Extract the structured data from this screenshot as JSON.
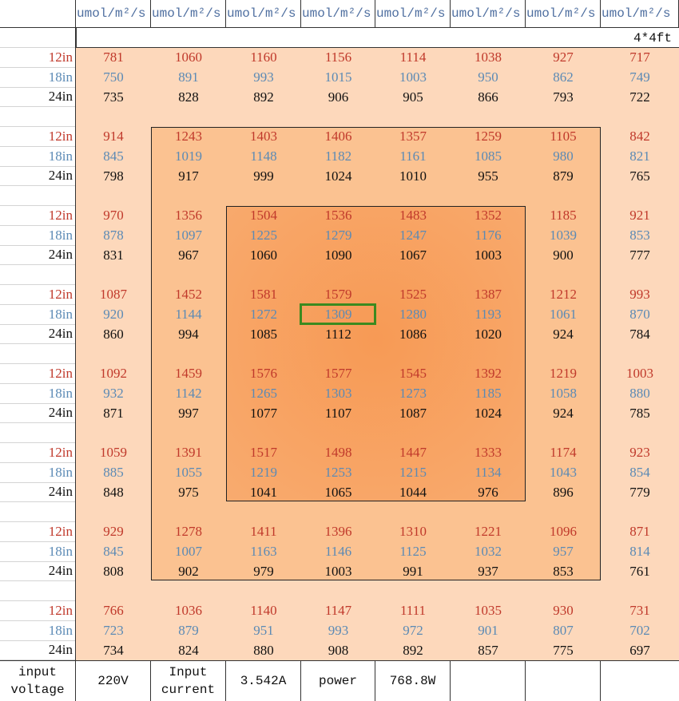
{
  "header": {
    "units": [
      "umol/m²/s",
      "umol/m²/s",
      "umol/m²/s",
      "umol/m²/s",
      "umol/m²/s",
      "umol/m²/s",
      "umol/m²/s",
      "umol/m²/s"
    ],
    "size": "4*4ft"
  },
  "table": {
    "blocks": [
      {
        "rows": [
          {
            "height": "12in",
            "values": [
              781,
              1060,
              1160,
              1156,
              1114,
              1038,
              927,
              717
            ]
          },
          {
            "height": "18in",
            "values": [
              750,
              891,
              993,
              1015,
              1003,
              950,
              862,
              749
            ]
          },
          {
            "height": "24in",
            "values": [
              735,
              828,
              892,
              906,
              905,
              866,
              793,
              722
            ]
          }
        ]
      },
      {
        "rows": [
          {
            "height": "12in",
            "values": [
              914,
              1243,
              1403,
              1406,
              1357,
              1259,
              1105,
              842
            ]
          },
          {
            "height": "18in",
            "values": [
              845,
              1019,
              1148,
              1182,
              1161,
              1085,
              980,
              821
            ]
          },
          {
            "height": "24in",
            "values": [
              798,
              917,
              999,
              1024,
              1010,
              955,
              879,
              765
            ]
          }
        ]
      },
      {
        "rows": [
          {
            "height": "12in",
            "values": [
              970,
              1356,
              1504,
              1536,
              1483,
              1352,
              1185,
              921
            ]
          },
          {
            "height": "18in",
            "values": [
              878,
              1097,
              1225,
              1279,
              1247,
              1176,
              1039,
              853
            ]
          },
          {
            "height": "24in",
            "values": [
              831,
              967,
              1060,
              1090,
              1067,
              1003,
              900,
              777
            ]
          }
        ]
      },
      {
        "rows": [
          {
            "height": "12in",
            "values": [
              1087,
              1452,
              1581,
              1579,
              1525,
              1387,
              1212,
              993
            ]
          },
          {
            "height": "18in",
            "values": [
              920,
              1144,
              1272,
              1309,
              1280,
              1193,
              1061,
              870
            ]
          },
          {
            "height": "24in",
            "values": [
              860,
              994,
              1085,
              1112,
              1086,
              1020,
              924,
              784
            ]
          }
        ]
      },
      {
        "rows": [
          {
            "height": "12in",
            "values": [
              1092,
              1459,
              1576,
              1577,
              1545,
              1392,
              1219,
              1003
            ]
          },
          {
            "height": "18in",
            "values": [
              932,
              1142,
              1265,
              1303,
              1273,
              1185,
              1058,
              880
            ]
          },
          {
            "height": "24in",
            "values": [
              871,
              997,
              1077,
              1107,
              1087,
              1024,
              924,
              785
            ]
          }
        ]
      },
      {
        "rows": [
          {
            "height": "12in",
            "values": [
              1059,
              1391,
              1517,
              1498,
              1447,
              1333,
              1174,
              923
            ]
          },
          {
            "height": "18in",
            "values": [
              885,
              1055,
              1219,
              1253,
              1215,
              1134,
              1043,
              854
            ]
          },
          {
            "height": "24in",
            "values": [
              848,
              975,
              1041,
              1065,
              1044,
              976,
              896,
              779
            ]
          }
        ]
      },
      {
        "rows": [
          {
            "height": "12in",
            "values": [
              929,
              1278,
              1411,
              1396,
              1310,
              1221,
              1096,
              871
            ]
          },
          {
            "height": "18in",
            "values": [
              845,
              1007,
              1163,
              1146,
              1125,
              1032,
              957,
              814
            ]
          },
          {
            "height": "24in",
            "values": [
              808,
              902,
              979,
              1003,
              991,
              937,
              853,
              761
            ]
          }
        ]
      },
      {
        "rows": [
          {
            "height": "12in",
            "values": [
              766,
              1036,
              1140,
              1147,
              1111,
              1035,
              930,
              731
            ]
          },
          {
            "height": "18in",
            "values": [
              723,
              879,
              951,
              993,
              972,
              901,
              807,
              702
            ]
          },
          {
            "height": "24in",
            "values": [
              734,
              824,
              880,
              908,
              892,
              857,
              775,
              697
            ]
          }
        ]
      }
    ]
  },
  "footer": {
    "cells": [
      "input voltage",
      "220V",
      "Input current",
      "3.542A",
      "power",
      "768.8W"
    ]
  }
}
